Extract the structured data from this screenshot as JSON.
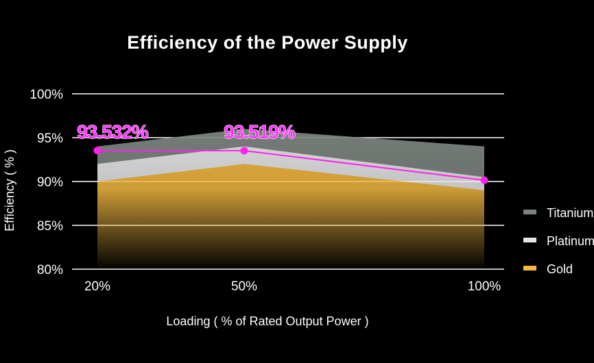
{
  "chart_data": {
    "type": "area",
    "title": "Efficiency of the Power Supply",
    "xlabel": "Loading ( % of Rated Output Power )",
    "ylabel": "Efficiency ( % )",
    "x_tick_labels": [
      "20%",
      "50%",
      "100%"
    ],
    "x": [
      20,
      50,
      100
    ],
    "y_tick_labels": [
      "80%",
      "85%",
      "90%",
      "95%",
      "100%"
    ],
    "y_ticks": [
      80,
      85,
      90,
      95,
      100
    ],
    "ylim": [
      80,
      100
    ],
    "grid": true,
    "legend_position": "right",
    "series": [
      {
        "name": "Titanium",
        "kind": "area",
        "values": [
          94.0,
          96.0,
          94.0
        ],
        "color": "#7d8480"
      },
      {
        "name": "Platinum",
        "kind": "area",
        "values": [
          92.0,
          94.0,
          90.5
        ],
        "color": "#e6e6e8"
      },
      {
        "name": "Gold",
        "kind": "area",
        "values": [
          90.0,
          92.0,
          89.0
        ],
        "color": "#f2b841"
      },
      {
        "kind": "line",
        "values": [
          93.532,
          93.519,
          90.15
        ],
        "color": "#ff22ee"
      }
    ],
    "annotations": [
      {
        "text": "93.532%",
        "x": 20,
        "y": 93.532
      },
      {
        "text": "93.519%",
        "x": 50,
        "y": 93.519
      }
    ]
  }
}
